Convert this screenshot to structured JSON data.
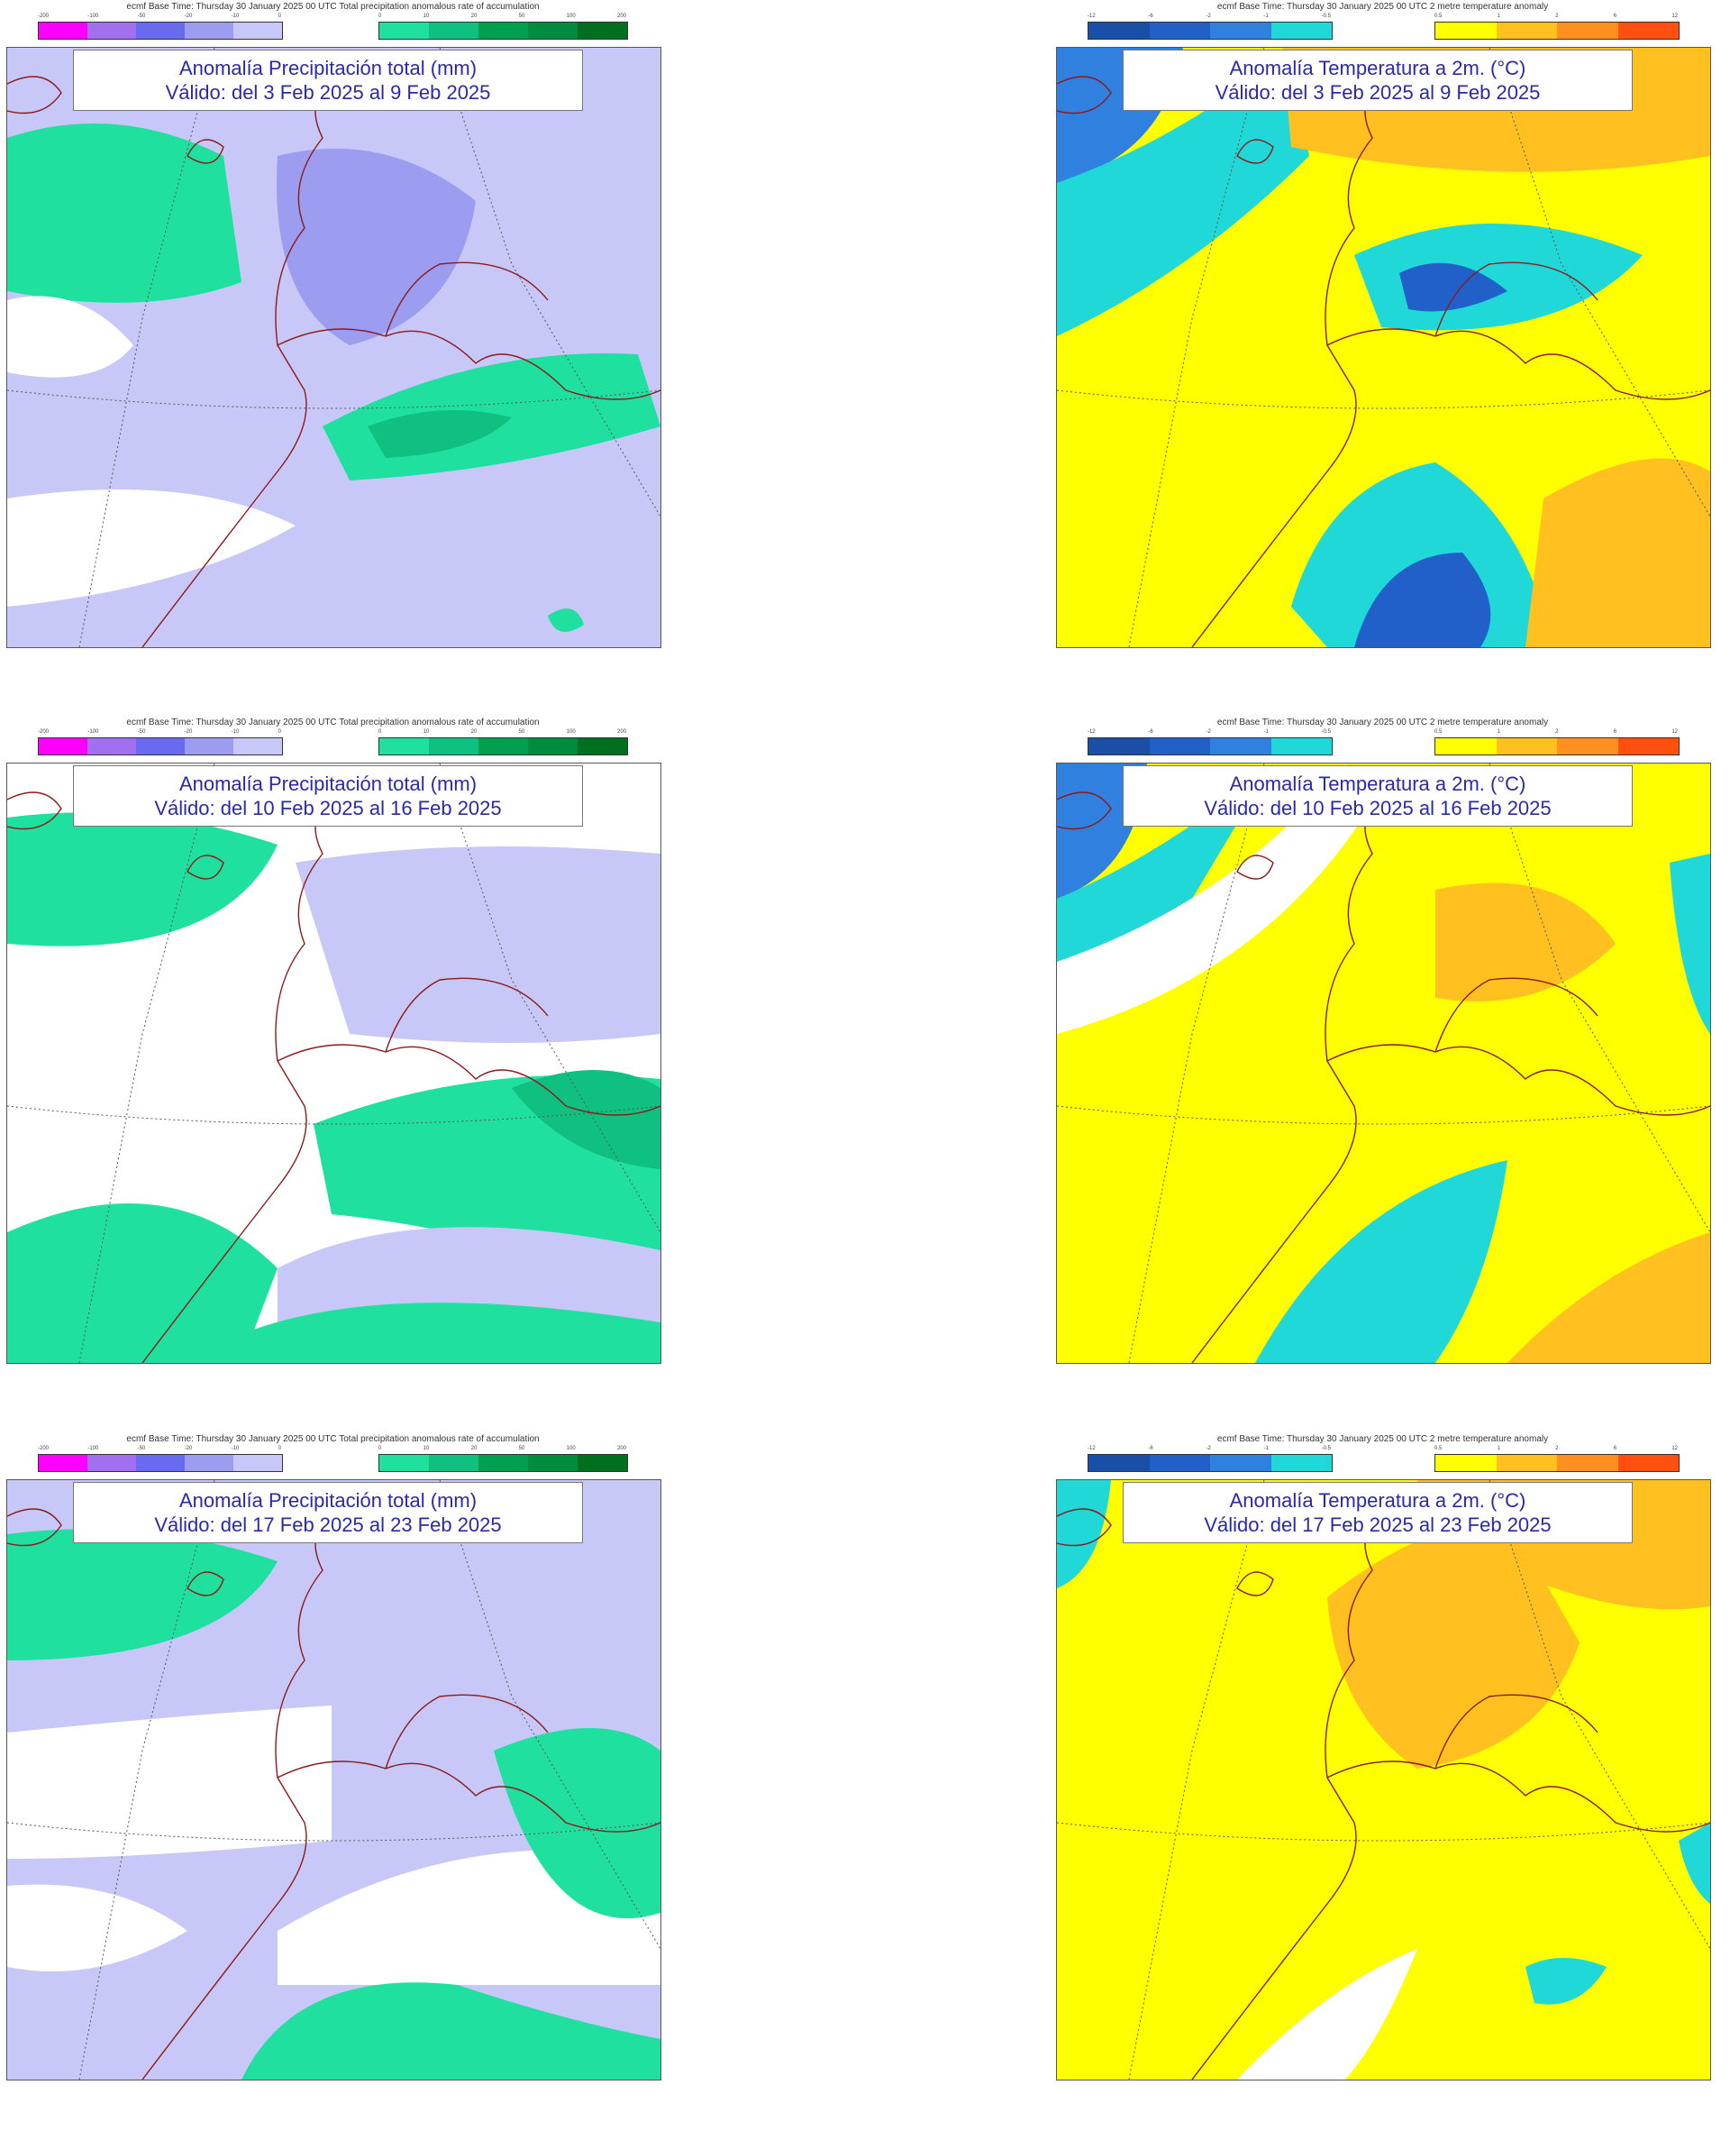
{
  "precip": {
    "header": "ecmf Base Time: Thursday 30 January 2025 00 UTC Total precipitation anomalous rate of accumulation",
    "title": "Anomalía Precipitación total (mm)",
    "neg_colors": [
      "#ff00ff",
      "#a070f0",
      "#6a6af0",
      "#9c9cf0",
      "#c8c8f8"
    ],
    "pos_colors": [
      "#20e0a0",
      "#10c080",
      "#00a050",
      "#008c40",
      "#007020"
    ],
    "neg_ticks": [
      "-200",
      "-100",
      "-50",
      "-20",
      "-10",
      "0"
    ],
    "pos_ticks": [
      "0",
      "10",
      "20",
      "50",
      "100",
      "200"
    ]
  },
  "temp": {
    "header": "ecmf Base Time: Thursday 30 January 2025 00 UTC 2 metre temperature anomaly",
    "title": "Anomalía Temperatura a 2m. (°C)",
    "neg_colors": [
      "#1a4fa8",
      "#2060c8",
      "#3080e0",
      "#20d8d8"
    ],
    "pos_colors": [
      "#ffff00",
      "#ffc020",
      "#ff9020",
      "#ff5010"
    ],
    "neg_ticks": [
      "-12",
      "-6",
      "-2",
      "-1",
      "-0.5"
    ],
    "pos_ticks": [
      "0.5",
      "1",
      "2",
      "6",
      "12"
    ]
  },
  "chart_data": [
    {
      "type": "heatmap",
      "variable": "precipitation",
      "title": "Anomalía Precipitación total (mm)",
      "valid": "Válido: del 3 Feb 2025 al 9 Feb 2025"
    },
    {
      "type": "heatmap",
      "variable": "temperature",
      "title": "Anomalía Temperatura a 2m. (°C)",
      "valid": "Válido: del 3 Feb 2025 al 9 Feb 2025"
    },
    {
      "type": "heatmap",
      "variable": "precipitation",
      "title": "Anomalía Precipitación total (mm)",
      "valid": "Válido: del 10 Feb 2025 al 16 Feb 2025"
    },
    {
      "type": "heatmap",
      "variable": "temperature",
      "title": "Anomalía Temperatura a 2m. (°C)",
      "valid": "Válido: del 10 Feb 2025 al 16 Feb 2025"
    },
    {
      "type": "heatmap",
      "variable": "precipitation",
      "title": "Anomalía Precipitación total (mm)",
      "valid": "Válido: del 17 Feb 2025 al 23 Feb 2025"
    },
    {
      "type": "heatmap",
      "variable": "temperature",
      "title": "Anomalía Temperatura a 2m. (°C)",
      "valid": "Válido: del 17 Feb 2025 al 23 Feb 2025"
    }
  ]
}
